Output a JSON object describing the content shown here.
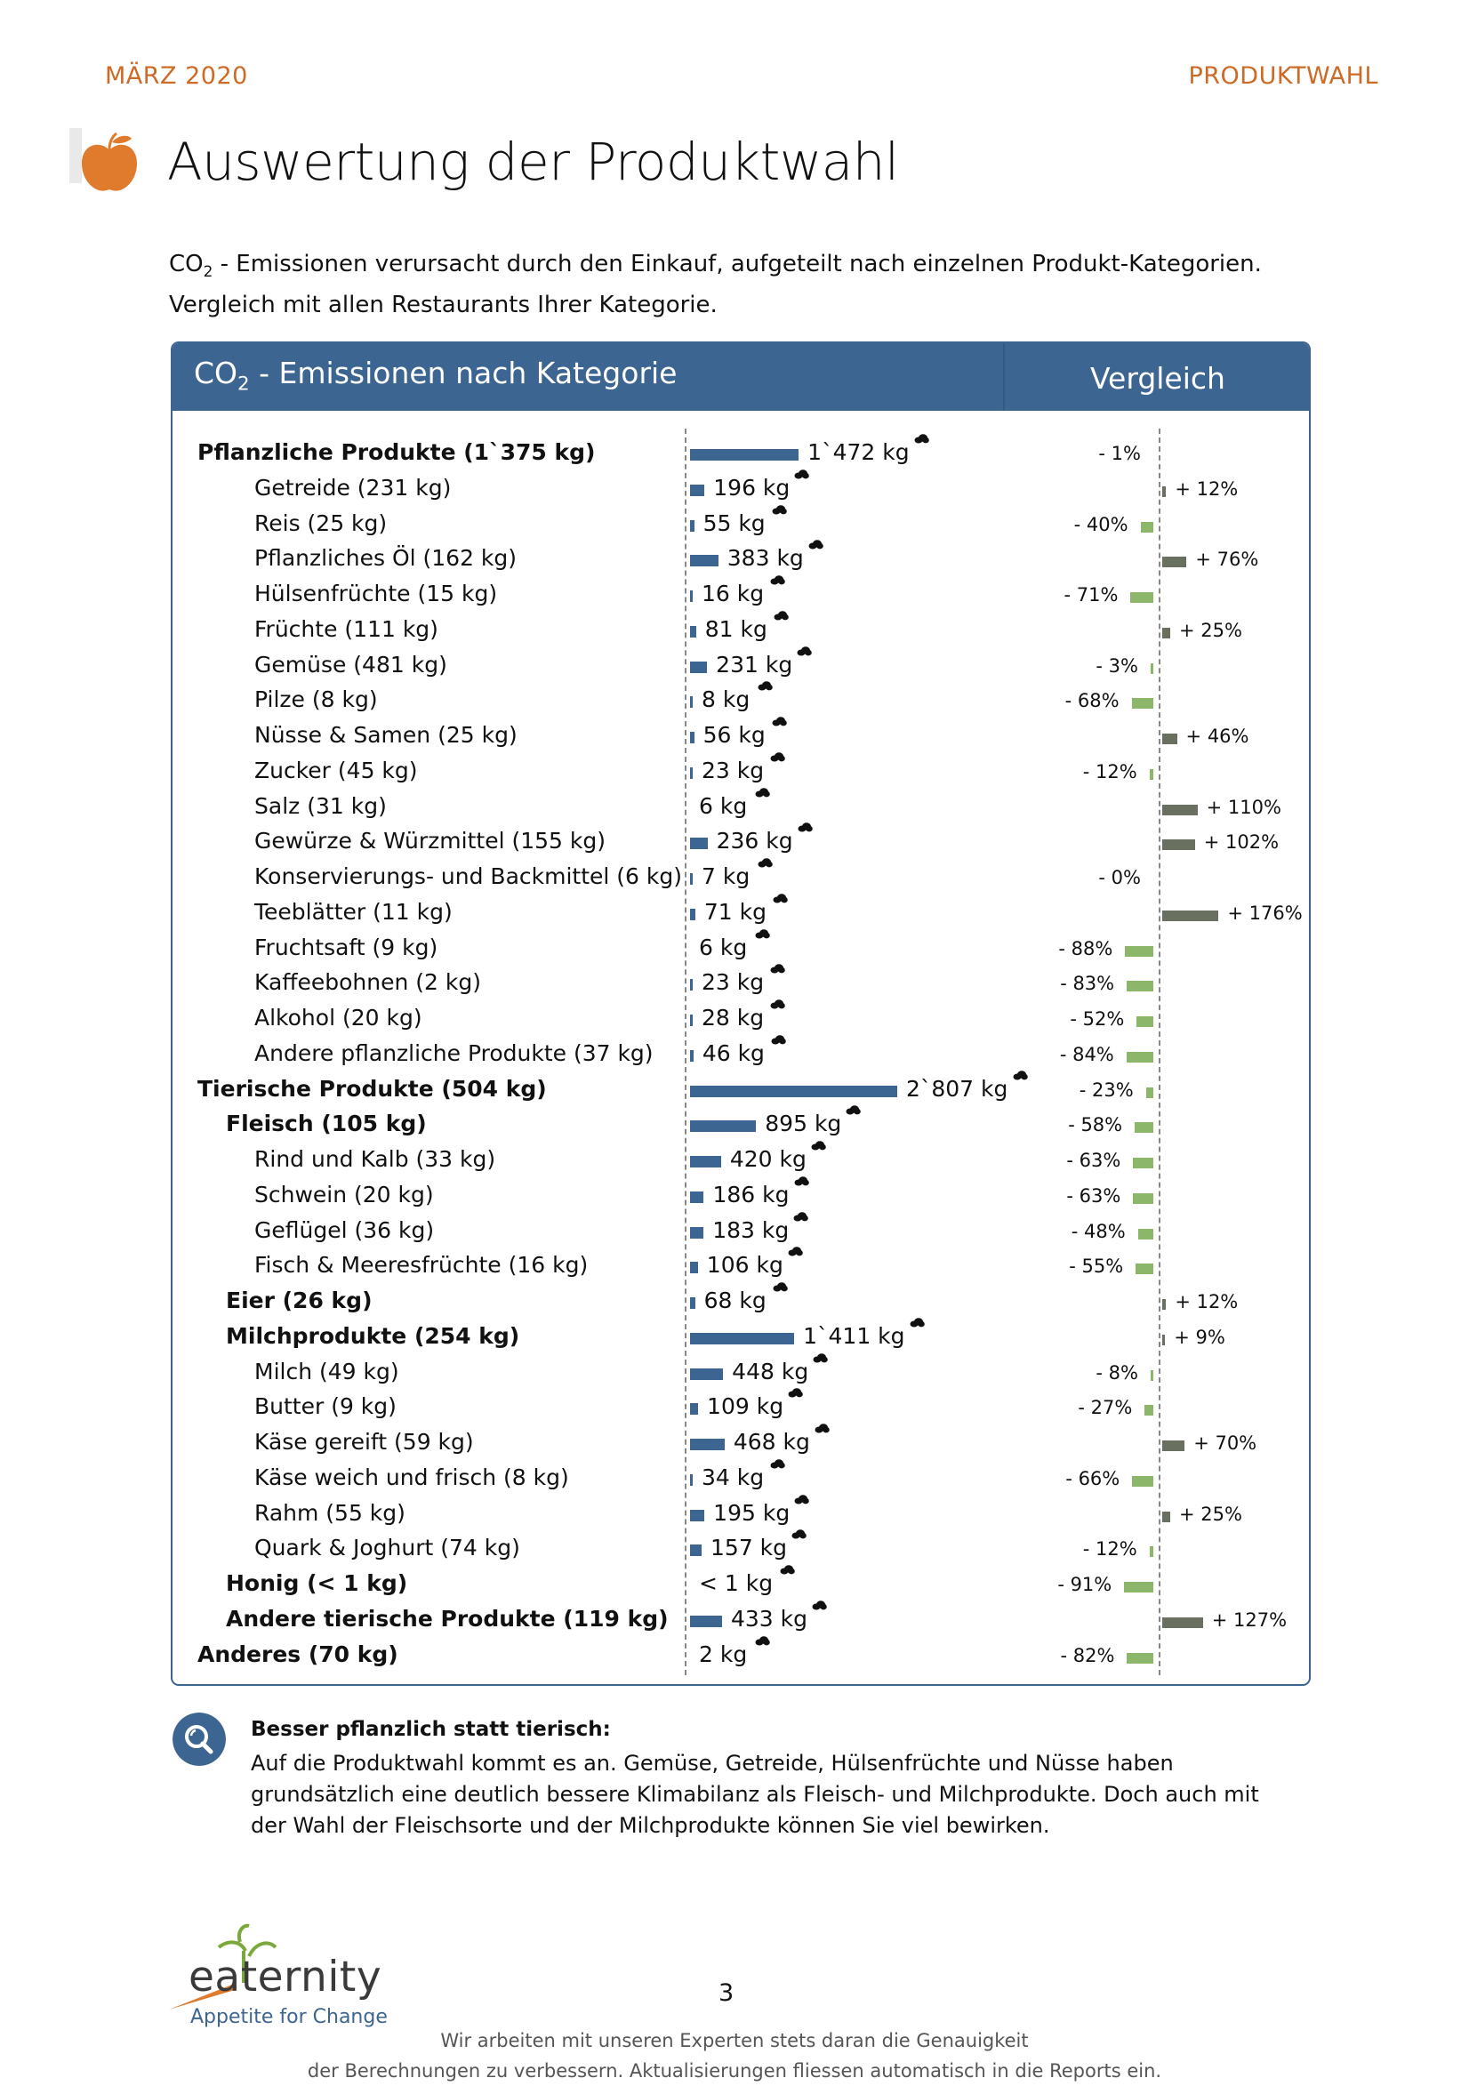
{
  "header": {
    "date": "MÄRZ 2020",
    "section": "PRODUKTWAHL"
  },
  "page_title": "Auswertung der Produktwahl",
  "intro": {
    "line1_pre": "CO",
    "line1_sub": "2",
    "line1_post": " - Emissionen verursacht durch den Einkauf, aufgeteilt nach einzelnen Produkt-Kategorien.",
    "line2": "Vergleich mit allen Restaurants Ihrer Kategorie."
  },
  "panel": {
    "title_pre": "CO",
    "title_sub": "2",
    "title_post": " - Emissionen nach Kategorie",
    "compare_title": "Vergleich"
  },
  "colors": {
    "header_accent": "#cc6a26",
    "panel_blue": "#3d6592",
    "compare_better": "#8cb66a",
    "compare_worse": "#6a7060"
  },
  "chart_data": {
    "type": "bar",
    "series": [
      {
        "name": "",
        "unit": "kg"
      },
      {
        "name": "Vergleich",
        "unit": "%"
      }
    ],
    "rows": [
      {
        "label": "Pflanzliche Produkte (1`375 kg)",
        "level": 0,
        "bold": true,
        "value": 1472,
        "value_label": "1`472 kg",
        "compare": -1,
        "compare_label": "- 1%"
      },
      {
        "label": "Getreide (231 kg)",
        "level": 2,
        "bold": false,
        "value": 196,
        "value_label": "196 kg",
        "compare": 12,
        "compare_label": "+ 12%"
      },
      {
        "label": "Reis (25 kg)",
        "level": 2,
        "bold": false,
        "value": 55,
        "value_label": "55 kg",
        "compare": -40,
        "compare_label": "- 40%"
      },
      {
        "label": "Pflanzliches Öl (162 kg)",
        "level": 2,
        "bold": false,
        "value": 383,
        "value_label": "383 kg",
        "compare": 76,
        "compare_label": "+ 76%"
      },
      {
        "label": "Hülsenfrüchte (15 kg)",
        "level": 2,
        "bold": false,
        "value": 16,
        "value_label": "16 kg",
        "compare": -71,
        "compare_label": "- 71%"
      },
      {
        "label": "Früchte (111 kg)",
        "level": 2,
        "bold": false,
        "value": 81,
        "value_label": "81 kg",
        "compare": 25,
        "compare_label": "+ 25%"
      },
      {
        "label": "Gemüse (481 kg)",
        "level": 2,
        "bold": false,
        "value": 231,
        "value_label": "231 kg",
        "compare": -3,
        "compare_label": "- 3%"
      },
      {
        "label": "Pilze (8 kg)",
        "level": 2,
        "bold": false,
        "value": 8,
        "value_label": "8 kg",
        "compare": -68,
        "compare_label": "- 68%"
      },
      {
        "label": "Nüsse & Samen (25 kg)",
        "level": 2,
        "bold": false,
        "value": 56,
        "value_label": "56 kg",
        "compare": 46,
        "compare_label": "+ 46%"
      },
      {
        "label": "Zucker (45 kg)",
        "level": 2,
        "bold": false,
        "value": 23,
        "value_label": "23 kg",
        "compare": -12,
        "compare_label": "- 12%"
      },
      {
        "label": "Salz (31 kg)",
        "level": 2,
        "bold": false,
        "value": 6,
        "value_label": "6 kg",
        "compare": 110,
        "compare_label": "+ 110%"
      },
      {
        "label": "Gewürze & Würzmittel (155 kg)",
        "level": 2,
        "bold": false,
        "value": 236,
        "value_label": "236 kg",
        "compare": 102,
        "compare_label": "+ 102%"
      },
      {
        "label": "Konservierungs- und Backmittel (6 kg)",
        "level": 2,
        "bold": false,
        "value": 7,
        "value_label": "7 kg",
        "compare": 0,
        "compare_label": "- 0%"
      },
      {
        "label": "Teeblätter (11 kg)",
        "level": 2,
        "bold": false,
        "value": 71,
        "value_label": "71 kg",
        "compare": 176,
        "compare_label": "+ 176%"
      },
      {
        "label": "Fruchtsaft (9 kg)",
        "level": 2,
        "bold": false,
        "value": 6,
        "value_label": "6 kg",
        "compare": -88,
        "compare_label": "- 88%"
      },
      {
        "label": "Kaffeebohnen (2 kg)",
        "level": 2,
        "bold": false,
        "value": 23,
        "value_label": "23 kg",
        "compare": -83,
        "compare_label": "- 83%"
      },
      {
        "label": "Alkohol (20 kg)",
        "level": 2,
        "bold": false,
        "value": 28,
        "value_label": "28 kg",
        "compare": -52,
        "compare_label": "- 52%"
      },
      {
        "label": "Andere pflanzliche Produkte (37 kg)",
        "level": 2,
        "bold": false,
        "value": 46,
        "value_label": "46 kg",
        "compare": -84,
        "compare_label": "- 84%"
      },
      {
        "label": "Tierische Produkte (504 kg)",
        "level": 0,
        "bold": true,
        "value": 2807,
        "value_label": "2`807 kg",
        "compare": -23,
        "compare_label": "- 23%"
      },
      {
        "label": "Fleisch (105 kg)",
        "level": 1,
        "bold": true,
        "value": 895,
        "value_label": "895 kg",
        "compare": -58,
        "compare_label": "- 58%"
      },
      {
        "label": "Rind und Kalb (33 kg)",
        "level": 2,
        "bold": false,
        "value": 420,
        "value_label": "420 kg",
        "compare": -63,
        "compare_label": "- 63%"
      },
      {
        "label": "Schwein (20 kg)",
        "level": 2,
        "bold": false,
        "value": 186,
        "value_label": "186 kg",
        "compare": -63,
        "compare_label": "- 63%"
      },
      {
        "label": "Geflügel (36 kg)",
        "level": 2,
        "bold": false,
        "value": 183,
        "value_label": "183 kg",
        "compare": -48,
        "compare_label": "- 48%"
      },
      {
        "label": "Fisch & Meeresfrüchte (16 kg)",
        "level": 2,
        "bold": false,
        "value": 106,
        "value_label": "106 kg",
        "compare": -55,
        "compare_label": "- 55%"
      },
      {
        "label": "Eier (26 kg)",
        "level": 1,
        "bold": true,
        "value": 68,
        "value_label": "68 kg",
        "compare": 12,
        "compare_label": "+ 12%"
      },
      {
        "label": "Milchprodukte (254 kg)",
        "level": 1,
        "bold": true,
        "value": 1411,
        "value_label": "1`411 kg",
        "compare": 9,
        "compare_label": "+ 9%"
      },
      {
        "label": "Milch (49 kg)",
        "level": 2,
        "bold": false,
        "value": 448,
        "value_label": "448 kg",
        "compare": -8,
        "compare_label": "- 8%"
      },
      {
        "label": "Butter (9 kg)",
        "level": 2,
        "bold": false,
        "value": 109,
        "value_label": "109 kg",
        "compare": -27,
        "compare_label": "- 27%"
      },
      {
        "label": "Käse gereift (59 kg)",
        "level": 2,
        "bold": false,
        "value": 468,
        "value_label": "468 kg",
        "compare": 70,
        "compare_label": "+ 70%"
      },
      {
        "label": "Käse weich und frisch (8 kg)",
        "level": 2,
        "bold": false,
        "value": 34,
        "value_label": "34 kg",
        "compare": -66,
        "compare_label": "- 66%"
      },
      {
        "label": "Rahm (55 kg)",
        "level": 2,
        "bold": false,
        "value": 195,
        "value_label": "195 kg",
        "compare": 25,
        "compare_label": "+ 25%"
      },
      {
        "label": "Quark & Joghurt (74 kg)",
        "level": 2,
        "bold": false,
        "value": 157,
        "value_label": "157 kg",
        "compare": -12,
        "compare_label": "- 12%"
      },
      {
        "label": "Honig (< 1 kg)",
        "level": 1,
        "bold": true,
        "value": 0.5,
        "value_label": "< 1 kg",
        "compare": -91,
        "compare_label": "- 91%"
      },
      {
        "label": "Andere tierische Produkte (119 kg)",
        "level": 1,
        "bold": true,
        "value": 433,
        "value_label": "433 kg",
        "compare": 127,
        "compare_label": "+ 127%"
      },
      {
        "label": "Anderes (70 kg)",
        "level": 0,
        "bold": true,
        "value": 2,
        "value_label": "2 kg",
        "compare": -82,
        "compare_label": "- 82%"
      }
    ]
  },
  "tip": {
    "icon": "magnifier-icon",
    "title": "Besser pflanzlich statt tierisch:",
    "text": "Auf die Produktwahl kommt es an. Gemüse, Getreide, Hülsenfrüchte und Nüsse haben grundsätzlich eine deutlich bessere Klimabilanz als Fleisch- und Milchprodukte. Doch auch mit der Wahl der Fleischsorte und der Milchprodukte können Sie viel bewirken."
  },
  "logo": {
    "word": "eaternity",
    "tagline": "Appetite for Change"
  },
  "page_number": "3",
  "footer": {
    "line1": "Wir arbeiten mit unseren Experten stets daran die Genauigkeit",
    "line2": "der Berechnungen zu verbessern. Aktualisierungen fliessen automatisch in die Reports ein."
  }
}
